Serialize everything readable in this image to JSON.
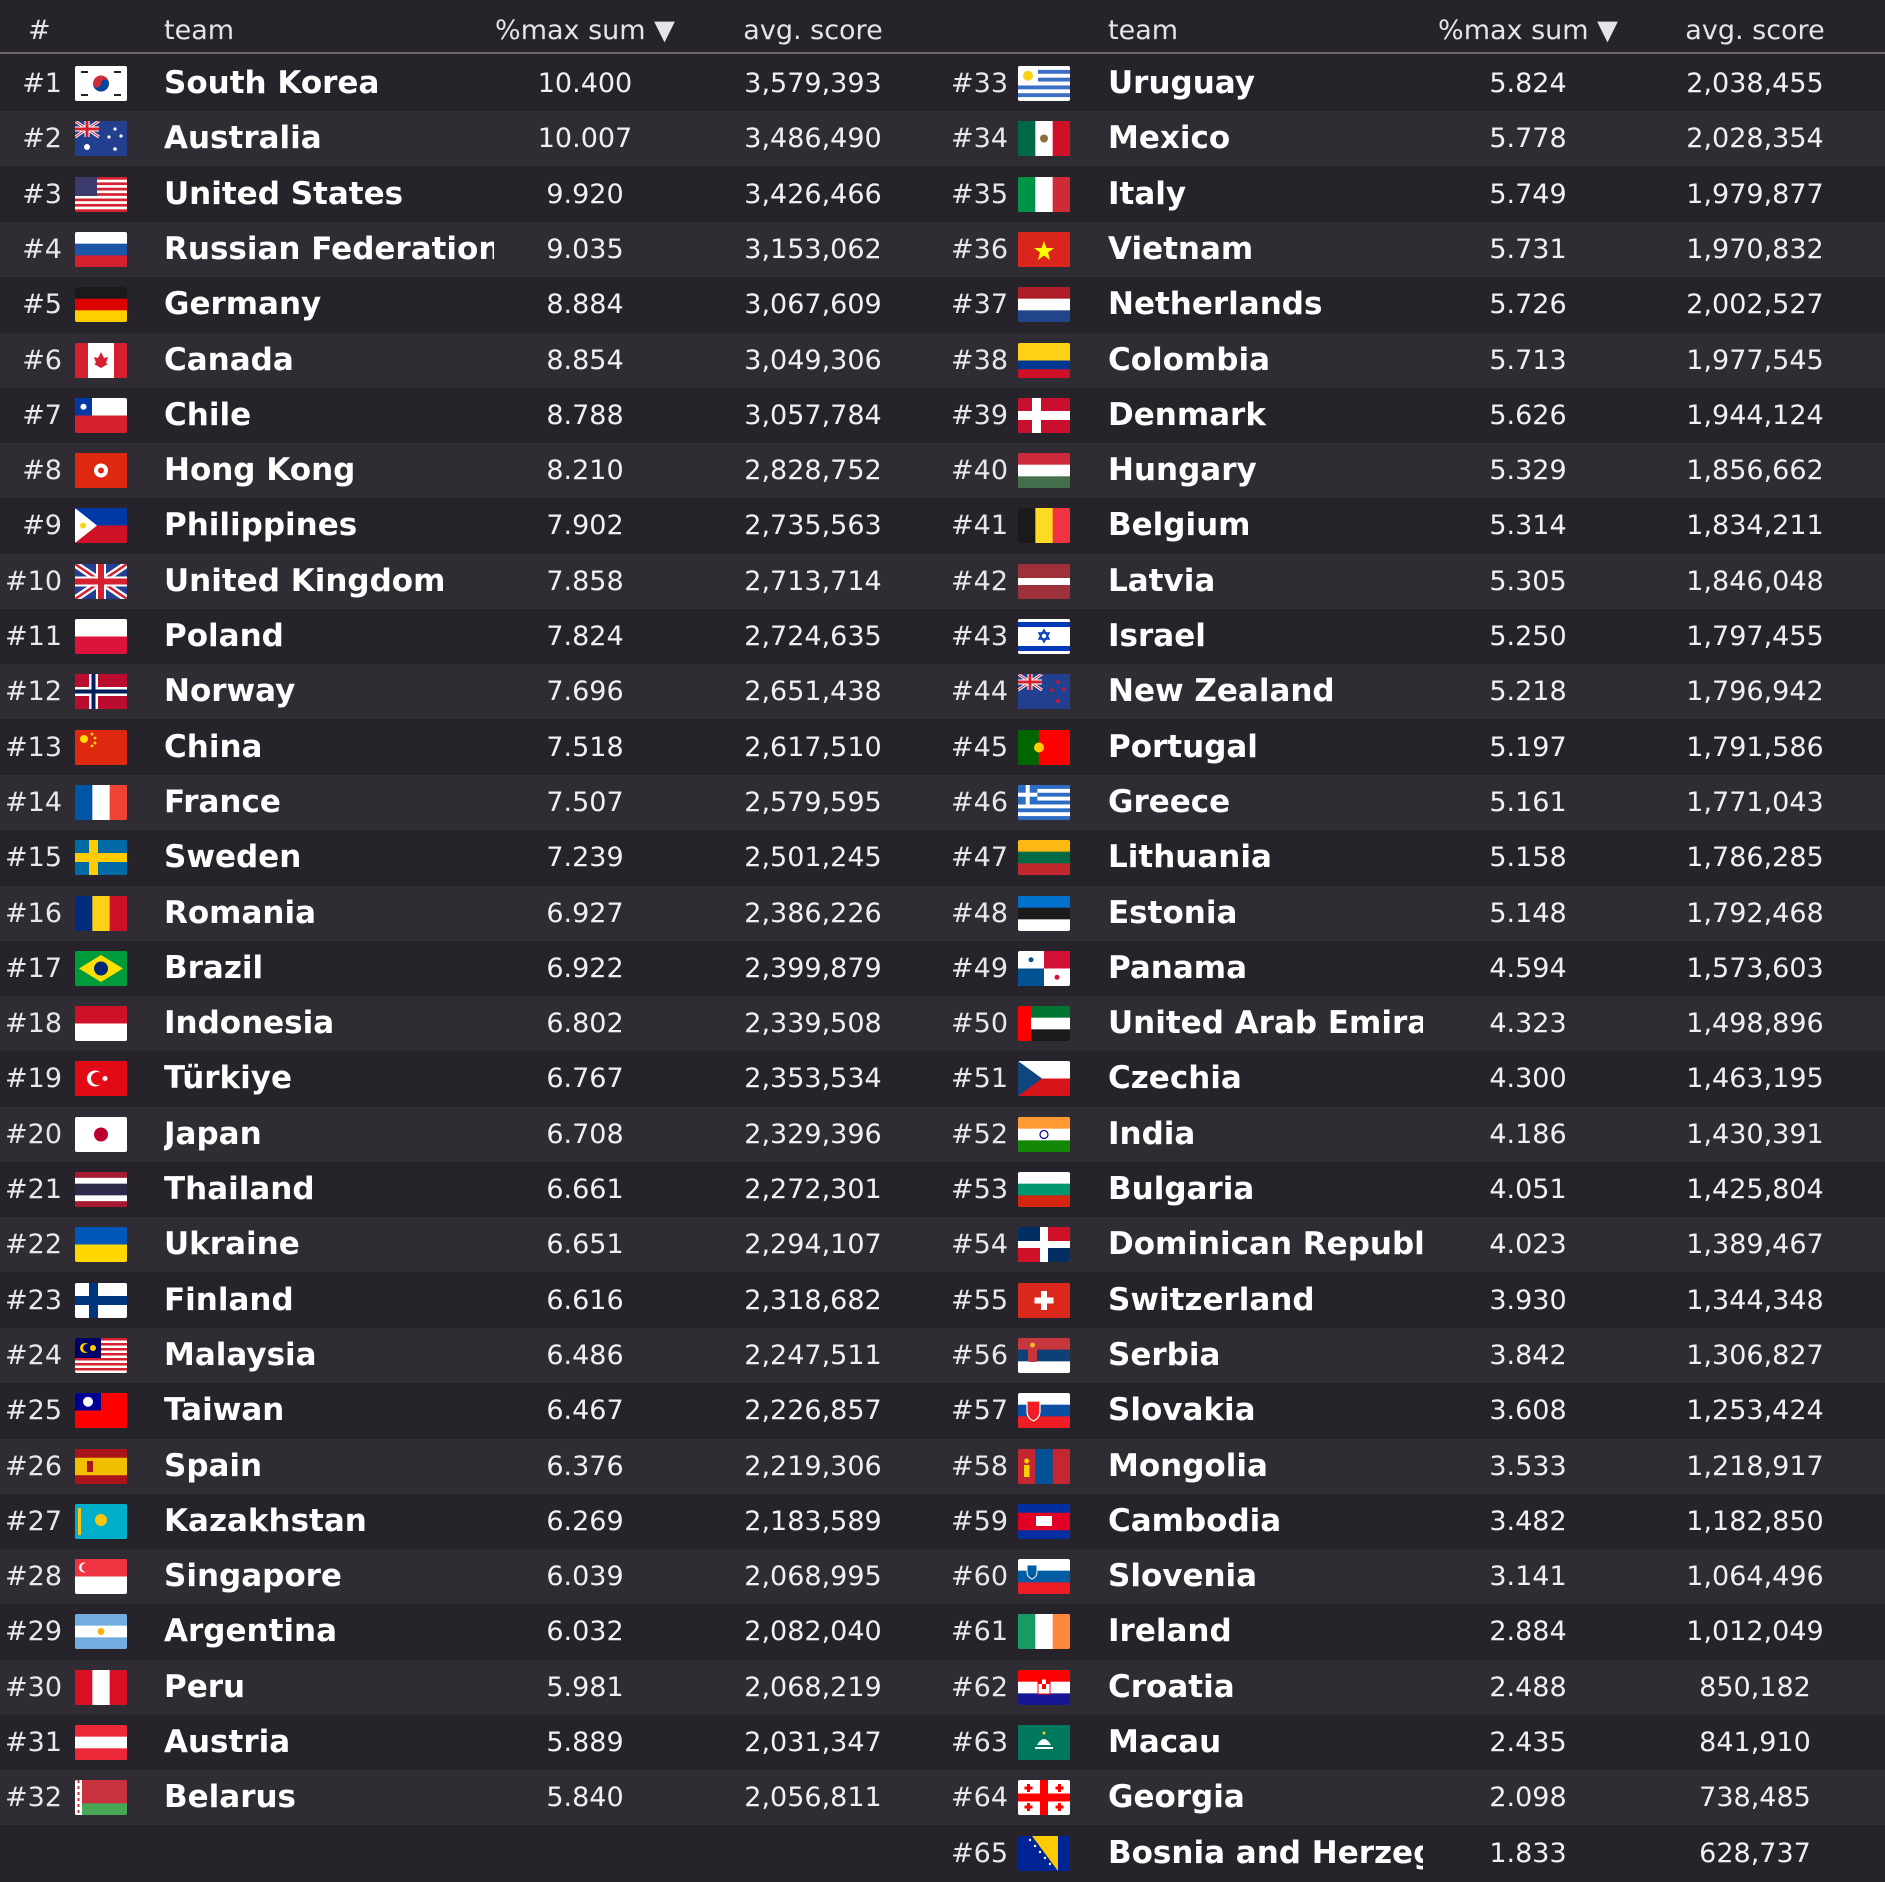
{
  "header": {
    "rank_label": "#",
    "team_label": "team",
    "max_sum_label": "%max sum ▼",
    "avg_score_label": "avg. score"
  },
  "left_column": [
    {
      "rank": "#1",
      "team": "South Korea",
      "max_sum": "10.400",
      "avg_score": "3,579,393",
      "flag": "south-korea-flag-icon"
    },
    {
      "rank": "#2",
      "team": "Australia",
      "max_sum": "10.007",
      "avg_score": "3,486,490",
      "flag": "australia-flag-icon"
    },
    {
      "rank": "#3",
      "team": "United States",
      "max_sum": "9.920",
      "avg_score": "3,426,466",
      "flag": "united-states-flag-icon"
    },
    {
      "rank": "#4",
      "team": "Russian Federation",
      "max_sum": "9.035",
      "avg_score": "3,153,062",
      "flag": "russia-flag-icon"
    },
    {
      "rank": "#5",
      "team": "Germany",
      "max_sum": "8.884",
      "avg_score": "3,067,609",
      "flag": "germany-flag-icon"
    },
    {
      "rank": "#6",
      "team": "Canada",
      "max_sum": "8.854",
      "avg_score": "3,049,306",
      "flag": "canada-flag-icon"
    },
    {
      "rank": "#7",
      "team": "Chile",
      "max_sum": "8.788",
      "avg_score": "3,057,784",
      "flag": "chile-flag-icon"
    },
    {
      "rank": "#8",
      "team": "Hong Kong",
      "max_sum": "8.210",
      "avg_score": "2,828,752",
      "flag": "hong-kong-flag-icon"
    },
    {
      "rank": "#9",
      "team": "Philippines",
      "max_sum": "7.902",
      "avg_score": "2,735,563",
      "flag": "philippines-flag-icon"
    },
    {
      "rank": "#10",
      "team": "United Kingdom",
      "max_sum": "7.858",
      "avg_score": "2,713,714",
      "flag": "united-kingdom-flag-icon"
    },
    {
      "rank": "#11",
      "team": "Poland",
      "max_sum": "7.824",
      "avg_score": "2,724,635",
      "flag": "poland-flag-icon"
    },
    {
      "rank": "#12",
      "team": "Norway",
      "max_sum": "7.696",
      "avg_score": "2,651,438",
      "flag": "norway-flag-icon"
    },
    {
      "rank": "#13",
      "team": "China",
      "max_sum": "7.518",
      "avg_score": "2,617,510",
      "flag": "china-flag-icon"
    },
    {
      "rank": "#14",
      "team": "France",
      "max_sum": "7.507",
      "avg_score": "2,579,595",
      "flag": "france-flag-icon"
    },
    {
      "rank": "#15",
      "team": "Sweden",
      "max_sum": "7.239",
      "avg_score": "2,501,245",
      "flag": "sweden-flag-icon"
    },
    {
      "rank": "#16",
      "team": "Romania",
      "max_sum": "6.927",
      "avg_score": "2,386,226",
      "flag": "romania-flag-icon"
    },
    {
      "rank": "#17",
      "team": "Brazil",
      "max_sum": "6.922",
      "avg_score": "2,399,879",
      "flag": "brazil-flag-icon"
    },
    {
      "rank": "#18",
      "team": "Indonesia",
      "max_sum": "6.802",
      "avg_score": "2,339,508",
      "flag": "indonesia-flag-icon"
    },
    {
      "rank": "#19",
      "team": "Türkiye",
      "max_sum": "6.767",
      "avg_score": "2,353,534",
      "flag": "turkiye-flag-icon"
    },
    {
      "rank": "#20",
      "team": "Japan",
      "max_sum": "6.708",
      "avg_score": "2,329,396",
      "flag": "japan-flag-icon"
    },
    {
      "rank": "#21",
      "team": "Thailand",
      "max_sum": "6.661",
      "avg_score": "2,272,301",
      "flag": "thailand-flag-icon"
    },
    {
      "rank": "#22",
      "team": "Ukraine",
      "max_sum": "6.651",
      "avg_score": "2,294,107",
      "flag": "ukraine-flag-icon"
    },
    {
      "rank": "#23",
      "team": "Finland",
      "max_sum": "6.616",
      "avg_score": "2,318,682",
      "flag": "finland-flag-icon"
    },
    {
      "rank": "#24",
      "team": "Malaysia",
      "max_sum": "6.486",
      "avg_score": "2,247,511",
      "flag": "malaysia-flag-icon"
    },
    {
      "rank": "#25",
      "team": "Taiwan",
      "max_sum": "6.467",
      "avg_score": "2,226,857",
      "flag": "taiwan-flag-icon"
    },
    {
      "rank": "#26",
      "team": "Spain",
      "max_sum": "6.376",
      "avg_score": "2,219,306",
      "flag": "spain-flag-icon"
    },
    {
      "rank": "#27",
      "team": "Kazakhstan",
      "max_sum": "6.269",
      "avg_score": "2,183,589",
      "flag": "kazakhstan-flag-icon"
    },
    {
      "rank": "#28",
      "team": "Singapore",
      "max_sum": "6.039",
      "avg_score": "2,068,995",
      "flag": "singapore-flag-icon"
    },
    {
      "rank": "#29",
      "team": "Argentina",
      "max_sum": "6.032",
      "avg_score": "2,082,040",
      "flag": "argentina-flag-icon"
    },
    {
      "rank": "#30",
      "team": "Peru",
      "max_sum": "5.981",
      "avg_score": "2,068,219",
      "flag": "peru-flag-icon"
    },
    {
      "rank": "#31",
      "team": "Austria",
      "max_sum": "5.889",
      "avg_score": "2,031,347",
      "flag": "austria-flag-icon"
    },
    {
      "rank": "#32",
      "team": "Belarus",
      "max_sum": "5.840",
      "avg_score": "2,056,811",
      "flag": "belarus-flag-icon"
    }
  ],
  "right_column": [
    {
      "rank": "#33",
      "team": "Uruguay",
      "max_sum": "5.824",
      "avg_score": "2,038,455",
      "flag": "uruguay-flag-icon"
    },
    {
      "rank": "#34",
      "team": "Mexico",
      "max_sum": "5.778",
      "avg_score": "2,028,354",
      "flag": "mexico-flag-icon"
    },
    {
      "rank": "#35",
      "team": "Italy",
      "max_sum": "5.749",
      "avg_score": "1,979,877",
      "flag": "italy-flag-icon"
    },
    {
      "rank": "#36",
      "team": "Vietnam",
      "max_sum": "5.731",
      "avg_score": "1,970,832",
      "flag": "vietnam-flag-icon"
    },
    {
      "rank": "#37",
      "team": "Netherlands",
      "max_sum": "5.726",
      "avg_score": "2,002,527",
      "flag": "netherlands-flag-icon"
    },
    {
      "rank": "#38",
      "team": "Colombia",
      "max_sum": "5.713",
      "avg_score": "1,977,545",
      "flag": "colombia-flag-icon"
    },
    {
      "rank": "#39",
      "team": "Denmark",
      "max_sum": "5.626",
      "avg_score": "1,944,124",
      "flag": "denmark-flag-icon"
    },
    {
      "rank": "#40",
      "team": "Hungary",
      "max_sum": "5.329",
      "avg_score": "1,856,662",
      "flag": "hungary-flag-icon"
    },
    {
      "rank": "#41",
      "team": "Belgium",
      "max_sum": "5.314",
      "avg_score": "1,834,211",
      "flag": "belgium-flag-icon"
    },
    {
      "rank": "#42",
      "team": "Latvia",
      "max_sum": "5.305",
      "avg_score": "1,846,048",
      "flag": "latvia-flag-icon"
    },
    {
      "rank": "#43",
      "team": "Israel",
      "max_sum": "5.250",
      "avg_score": "1,797,455",
      "flag": "israel-flag-icon"
    },
    {
      "rank": "#44",
      "team": "New Zealand",
      "max_sum": "5.218",
      "avg_score": "1,796,942",
      "flag": "new-zealand-flag-icon"
    },
    {
      "rank": "#45",
      "team": "Portugal",
      "max_sum": "5.197",
      "avg_score": "1,791,586",
      "flag": "portugal-flag-icon"
    },
    {
      "rank": "#46",
      "team": "Greece",
      "max_sum": "5.161",
      "avg_score": "1,771,043",
      "flag": "greece-flag-icon"
    },
    {
      "rank": "#47",
      "team": "Lithuania",
      "max_sum": "5.158",
      "avg_score": "1,786,285",
      "flag": "lithuania-flag-icon"
    },
    {
      "rank": "#48",
      "team": "Estonia",
      "max_sum": "5.148",
      "avg_score": "1,792,468",
      "flag": "estonia-flag-icon"
    },
    {
      "rank": "#49",
      "team": "Panama",
      "max_sum": "4.594",
      "avg_score": "1,573,603",
      "flag": "panama-flag-icon"
    },
    {
      "rank": "#50",
      "team": "United Arab Emirates",
      "max_sum": "4.323",
      "avg_score": "1,498,896",
      "flag": "uae-flag-icon"
    },
    {
      "rank": "#51",
      "team": "Czechia",
      "max_sum": "4.300",
      "avg_score": "1,463,195",
      "flag": "czechia-flag-icon"
    },
    {
      "rank": "#52",
      "team": "India",
      "max_sum": "4.186",
      "avg_score": "1,430,391",
      "flag": "india-flag-icon"
    },
    {
      "rank": "#53",
      "team": "Bulgaria",
      "max_sum": "4.051",
      "avg_score": "1,425,804",
      "flag": "bulgaria-flag-icon"
    },
    {
      "rank": "#54",
      "team": "Dominican Republic",
      "max_sum": "4.023",
      "avg_score": "1,389,467",
      "flag": "dominican-republic-flag-icon"
    },
    {
      "rank": "#55",
      "team": "Switzerland",
      "max_sum": "3.930",
      "avg_score": "1,344,348",
      "flag": "switzerland-flag-icon"
    },
    {
      "rank": "#56",
      "team": "Serbia",
      "max_sum": "3.842",
      "avg_score": "1,306,827",
      "flag": "serbia-flag-icon"
    },
    {
      "rank": "#57",
      "team": "Slovakia",
      "max_sum": "3.608",
      "avg_score": "1,253,424",
      "flag": "slovakia-flag-icon"
    },
    {
      "rank": "#58",
      "team": "Mongolia",
      "max_sum": "3.533",
      "avg_score": "1,218,917",
      "flag": "mongolia-flag-icon"
    },
    {
      "rank": "#59",
      "team": "Cambodia",
      "max_sum": "3.482",
      "avg_score": "1,182,850",
      "flag": "cambodia-flag-icon"
    },
    {
      "rank": "#60",
      "team": "Slovenia",
      "max_sum": "3.141",
      "avg_score": "1,064,496",
      "flag": "slovenia-flag-icon"
    },
    {
      "rank": "#61",
      "team": "Ireland",
      "max_sum": "2.884",
      "avg_score": "1,012,049",
      "flag": "ireland-flag-icon"
    },
    {
      "rank": "#62",
      "team": "Croatia",
      "max_sum": "2.488",
      "avg_score": "850,182",
      "flag": "croatia-flag-icon"
    },
    {
      "rank": "#63",
      "team": "Macau",
      "max_sum": "2.435",
      "avg_score": "841,910",
      "flag": "macau-flag-icon"
    },
    {
      "rank": "#64",
      "team": "Georgia",
      "max_sum": "2.098",
      "avg_score": "738,485",
      "flag": "georgia-flag-icon"
    },
    {
      "rank": "#65",
      "team": "Bosnia and Herzegovina",
      "max_sum": "1.833",
      "avg_score": "628,737",
      "flag": "bosnia-flag-icon"
    }
  ],
  "colors": {
    "background": "#26232a",
    "row_stripe": "#2f2c33",
    "header_rule": "#6b6670",
    "text": "#ffffff"
  }
}
